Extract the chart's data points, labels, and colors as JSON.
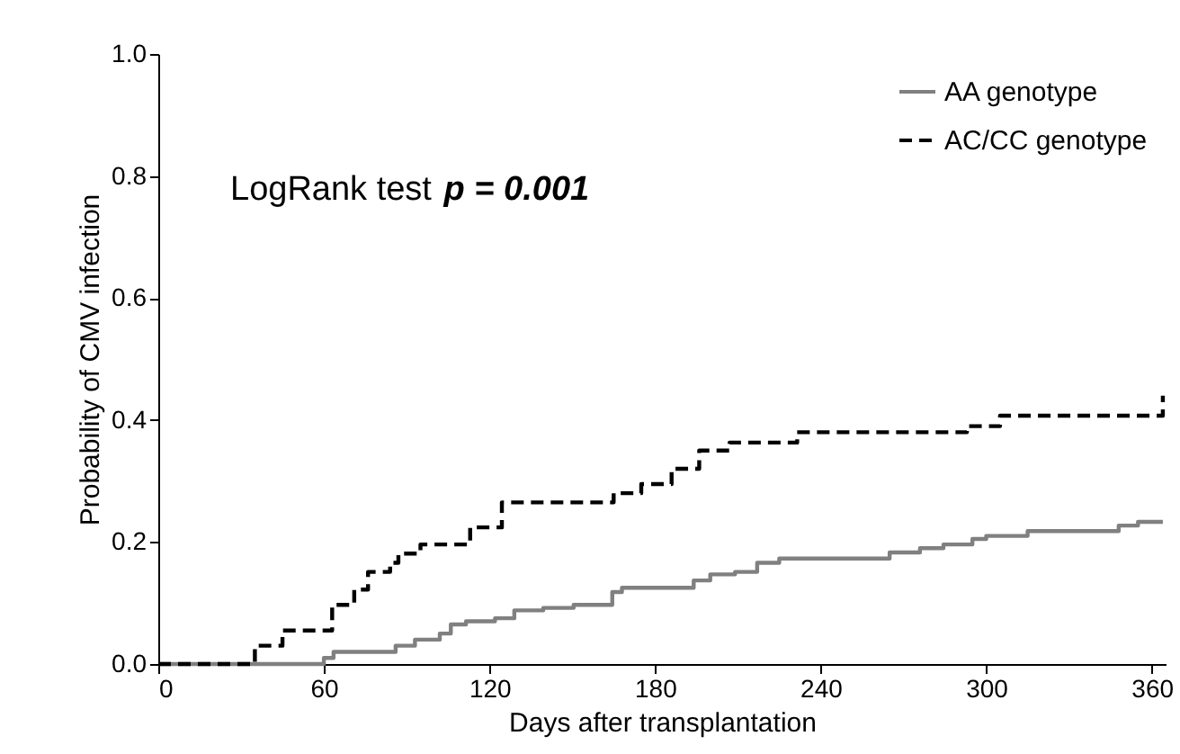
{
  "chart_data": {
    "type": "step",
    "xlabel": "Days  after  transplantation",
    "ylabel": "Probability of CMV infection",
    "xlim": [
      0,
      365
    ],
    "xticks": [
      0,
      60,
      120,
      180,
      240,
      300,
      360
    ],
    "ylim": [
      0,
      1
    ],
    "yticks": [
      {
        "value": 0,
        "label": "0.0"
      },
      {
        "value": 0.2,
        "label": "0.2"
      },
      {
        "value": 0.4,
        "label": "0.4"
      },
      {
        "value": 0.6,
        "label": "0.6"
      },
      {
        "value": 0.8,
        "label": "0.8"
      },
      {
        "value": 1,
        "label": "1.0"
      }
    ],
    "grid": false,
    "legend": "top right",
    "annotations": [
      "LogRank test",
      "p = 0.001"
    ],
    "series": [
      {
        "name": "AA genotype",
        "color": "#808080",
        "line_style": "solid",
        "x": [
          0,
          60,
          63.5,
          86,
          93,
          102,
          106,
          111.5,
          122,
          129,
          139.5,
          150.5,
          164.5,
          168,
          194,
          200,
          209,
          217,
          225,
          265,
          276,
          284.5,
          295,
          300,
          315,
          348,
          355,
          364
        ],
        "values": [
          0,
          0.01,
          0.02,
          0.03,
          0.04,
          0.05,
          0.065,
          0.07,
          0.075,
          0.088,
          0.092,
          0.097,
          0.118,
          0.125,
          0.137,
          0.147,
          0.151,
          0.166,
          0.173,
          0.183,
          0.19,
          0.196,
          0.205,
          0.21,
          0.218,
          0.227,
          0.233,
          0.233
        ]
      },
      {
        "name": "AC/CC genotype",
        "color": "#000000",
        "line_style": "dashed",
        "x": [
          0,
          35,
          45,
          63,
          71,
          76,
          84,
          87,
          95,
          113,
          124.5,
          165,
          175,
          186,
          196,
          207,
          231.5,
          293,
          305,
          364
        ],
        "values": [
          0,
          0.03,
          0.055,
          0.097,
          0.122,
          0.151,
          0.166,
          0.181,
          0.196,
          0.224,
          0.265,
          0.28,
          0.295,
          0.32,
          0.35,
          0.363,
          0.38,
          0.39,
          0.407,
          0.44
        ]
      }
    ]
  }
}
